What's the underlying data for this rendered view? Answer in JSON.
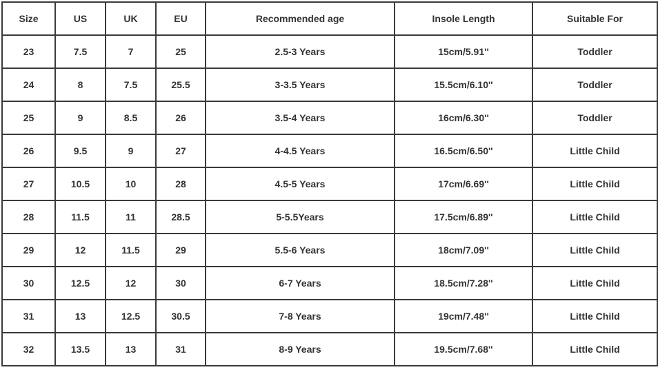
{
  "headers": [
    "Size",
    "US",
    "UK",
    "EU",
    "Recommended age",
    "Insole Length",
    "Suitable For"
  ],
  "rows": [
    [
      "23",
      "7.5",
      "7",
      "25",
      "2.5-3 Years",
      "15cm/5.91''",
      "Toddler"
    ],
    [
      "24",
      "8",
      "7.5",
      "25.5",
      "3-3.5 Years",
      "15.5cm/6.10''",
      "Toddler"
    ],
    [
      "25",
      "9",
      "8.5",
      "26",
      "3.5-4 Years",
      "16cm/6.30''",
      "Toddler"
    ],
    [
      "26",
      "9.5",
      "9",
      "27",
      "4-4.5 Years",
      "16.5cm/6.50''",
      "Little Child"
    ],
    [
      "27",
      "10.5",
      "10",
      "28",
      "4.5-5 Years",
      "17cm/6.69''",
      "Little Child"
    ],
    [
      "28",
      "11.5",
      "11",
      "28.5",
      "5-5.5Years",
      "17.5cm/6.89''",
      "Little Child"
    ],
    [
      "29",
      "12",
      "11.5",
      "29",
      "5.5-6 Years",
      "18cm/7.09''",
      "Little Child"
    ],
    [
      "30",
      "12.5",
      "12",
      "30",
      "6-7 Years",
      "18.5cm/7.28''",
      "Little Child"
    ],
    [
      "31",
      "13",
      "12.5",
      "30.5",
      "7-8 Years",
      "19cm/7.48''",
      "Little Child"
    ],
    [
      "32",
      "13.5",
      "13",
      "31",
      "8-9 Years",
      "19.5cm/7.68''",
      "Little Child"
    ]
  ]
}
